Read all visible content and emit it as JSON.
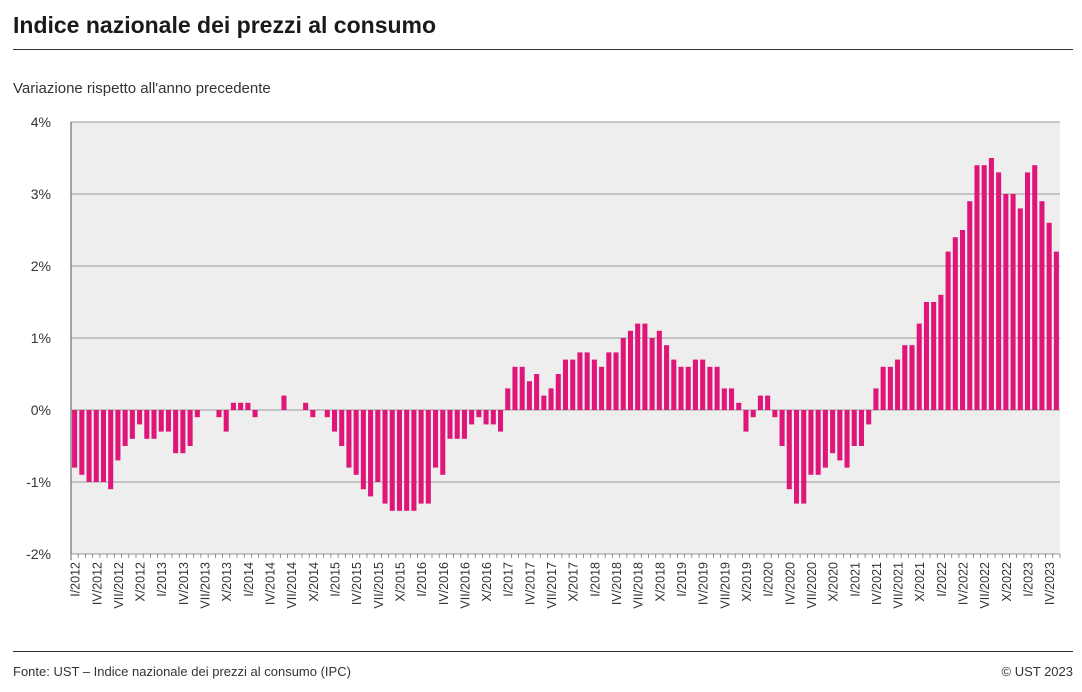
{
  "header": {
    "title": "Indice nazionale dei prezzi al consumo",
    "subtitle": "Variazione rispetto all'anno precedente"
  },
  "footer": {
    "source": "Fonte: UST – Indice nazionale dei prezzi al consumo (IPC)",
    "copyright": "© UST 2023"
  },
  "colors": {
    "bar": "#e0157a",
    "plot_background": "#eeeeee",
    "gridline": "#9a9a9a"
  },
  "chart_data": {
    "type": "bar",
    "title": "Indice nazionale dei prezzi al consumo",
    "subtitle": "Variazione rispetto all'anno precedente",
    "xlabel": "",
    "ylabel": "",
    "ylim": [
      -2,
      4
    ],
    "grid": true,
    "yticks": [
      4,
      3,
      2,
      1,
      0,
      -1,
      -2
    ],
    "ytick_labels": [
      "4%",
      "3%",
      "2%",
      "1%",
      "0%",
      "-1%",
      "-2%"
    ],
    "x_start": "I/2012",
    "xtick_labels": [
      "I/2012",
      "IV/2012",
      "VII/2012",
      "X/2012",
      "I/2013",
      "IV/2013",
      "VII/2013",
      "X/2013",
      "I/2014",
      "IV/2014",
      "VII/2014",
      "X/2014",
      "I/2015",
      "IV/2015",
      "VII/2015",
      "X/2015",
      "I/2016",
      "IV/2016",
      "VII/2016",
      "X/2016",
      "I/2017",
      "IV/2017",
      "VII/2017",
      "X/2017",
      "I/2018",
      "IV/2018",
      "VII/2018",
      "X/2018",
      "I/2019",
      "IV/2019",
      "VII/2019",
      "X/2019",
      "I/2020",
      "IV/2020",
      "VII/2020",
      "X/2020",
      "I/2021",
      "IV/2021",
      "VII/2021",
      "X/2021",
      "I/2022",
      "IV/2022",
      "VII/2022",
      "X/2022",
      "I/2023",
      "IV/2023"
    ],
    "series": [
      {
        "name": "Variazione rispetto all'anno precedente (%)",
        "values": [
          -0.8,
          -0.9,
          -1.0,
          -1.0,
          -1.0,
          -1.1,
          -0.7,
          -0.5,
          -0.4,
          -0.2,
          -0.4,
          -0.4,
          -0.3,
          -0.3,
          -0.6,
          -0.6,
          -0.5,
          -0.1,
          0.0,
          0.0,
          -0.1,
          -0.3,
          0.1,
          0.1,
          0.1,
          -0.1,
          0.0,
          0.0,
          0.0,
          0.2,
          0.0,
          0.0,
          0.1,
          -0.1,
          0.0,
          -0.1,
          -0.3,
          -0.5,
          -0.8,
          -0.9,
          -1.1,
          -1.2,
          -1.0,
          -1.3,
          -1.4,
          -1.4,
          -1.4,
          -1.4,
          -1.3,
          -1.3,
          -0.8,
          -0.9,
          -0.4,
          -0.4,
          -0.4,
          -0.2,
          -0.1,
          -0.2,
          -0.2,
          -0.3,
          0.3,
          0.6,
          0.6,
          0.4,
          0.5,
          0.2,
          0.3,
          0.5,
          0.7,
          0.7,
          0.8,
          0.8,
          0.7,
          0.6,
          0.8,
          0.8,
          1.0,
          1.1,
          1.2,
          1.2,
          1.0,
          1.1,
          0.9,
          0.7,
          0.6,
          0.6,
          0.7,
          0.7,
          0.6,
          0.6,
          0.3,
          0.3,
          0.1,
          -0.3,
          -0.1,
          0.2,
          0.2,
          -0.1,
          -0.5,
          -1.1,
          -1.3,
          -1.3,
          -0.9,
          -0.9,
          -0.8,
          -0.6,
          -0.7,
          -0.8,
          -0.5,
          -0.5,
          -0.2,
          0.3,
          0.6,
          0.6,
          0.7,
          0.9,
          0.9,
          1.2,
          1.5,
          1.5,
          1.6,
          2.2,
          2.4,
          2.5,
          2.9,
          3.4,
          3.4,
          3.5,
          3.3,
          3.0,
          3.0,
          2.8,
          3.3,
          3.4,
          2.9,
          2.6,
          2.2
        ]
      }
    ]
  }
}
